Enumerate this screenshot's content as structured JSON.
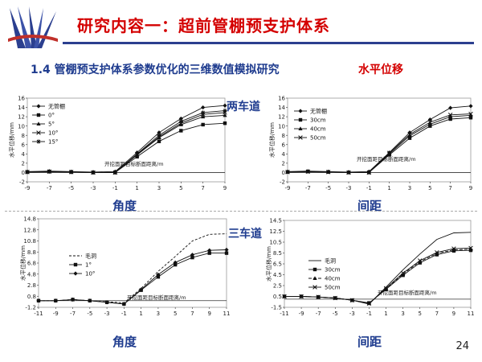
{
  "header": {
    "title": "研究内容一：超前管棚预支护体系"
  },
  "subtitle": "1.4 管棚预支护体系参数优化的三维数值模拟研究",
  "subtitle_tag": "水平位移",
  "lane_labels": {
    "two_lane": "两车道",
    "three_lane": "三车道"
  },
  "row_labels": {
    "tl": "角度",
    "tr": "间距",
    "bl": "角度",
    "br": "间距"
  },
  "page_number": "24",
  "colors": {
    "title_red": "#d40000",
    "label_blue": "#1f3c8f",
    "rule_blue": "#2b3f8f"
  },
  "chart_data": [
    {
      "type": "line",
      "title": "",
      "ylabel": "水平位移/mm",
      "xlabel": "开挖面距目标断面距离/m",
      "xlim": [
        -9,
        9
      ],
      "ylim": [
        -2,
        16
      ],
      "xticks": [
        -9,
        -7,
        -5,
        -3,
        -1,
        1,
        3,
        5,
        7,
        9
      ],
      "yticks": [
        -2,
        0,
        2,
        4,
        6,
        8,
        10,
        12,
        14,
        16
      ],
      "xtick_labels": [
        "-9",
        "-7",
        "-5",
        "-3",
        "-1",
        "1",
        "3",
        "5",
        "7",
        "9"
      ],
      "ytick_labels": [
        "-2",
        "0",
        "2",
        "4",
        "6",
        "8",
        "10",
        "12",
        "14",
        "16"
      ],
      "legend": "top-left",
      "x": [
        -9,
        -7,
        -5,
        -3,
        -1,
        1,
        3,
        5,
        7,
        9
      ],
      "series": [
        {
          "name": "无管棚",
          "marker": "diamond",
          "dash": "",
          "values": [
            0.2,
            0.3,
            0.2,
            0.1,
            0.2,
            4.3,
            8.6,
            11.6,
            14.0,
            14.4
          ]
        },
        {
          "name": "0°",
          "marker": "square",
          "dash": "",
          "values": [
            0.1,
            0.2,
            0.1,
            0.0,
            0.0,
            3.4,
            6.7,
            9.0,
            10.3,
            10.6
          ]
        },
        {
          "name": "5°",
          "marker": "triangle",
          "dash": "",
          "values": [
            0.1,
            0.2,
            0.1,
            0.0,
            0.0,
            3.8,
            7.5,
            10.3,
            12.0,
            12.3
          ]
        },
        {
          "name": "10°",
          "marker": "x",
          "dash": "",
          "values": [
            0.1,
            0.2,
            0.1,
            0.0,
            0.0,
            3.9,
            7.7,
            10.6,
            12.5,
            12.9
          ]
        },
        {
          "name": "15°",
          "marker": "star",
          "dash": "",
          "values": [
            0.1,
            0.2,
            0.1,
            0.0,
            0.0,
            4.0,
            8.0,
            11.0,
            12.9,
            13.3
          ]
        }
      ]
    },
    {
      "type": "line",
      "title": "",
      "ylabel": "水平位移/mm",
      "xlabel": "开挖面距目标断面距离/m",
      "xlim": [
        -9,
        9
      ],
      "ylim": [
        -2,
        16
      ],
      "xticks": [
        -9,
        -7,
        -5,
        -3,
        -1,
        1,
        3,
        5,
        7,
        9
      ],
      "yticks": [
        -2,
        0,
        2,
        4,
        6,
        8,
        10,
        12,
        14,
        16
      ],
      "xtick_labels": [
        "-9",
        "-7",
        "-5",
        "-3",
        "-1",
        "1",
        "3",
        "5",
        "7",
        "9"
      ],
      "ytick_labels": [
        "-2",
        "0",
        "2",
        "4",
        "6",
        "8",
        "10",
        "12",
        "14",
        "16"
      ],
      "legend": "top-left",
      "x": [
        -9,
        -7,
        -5,
        -3,
        -1,
        1,
        3,
        5,
        7,
        9
      ],
      "series": [
        {
          "name": "无管棚",
          "marker": "diamond",
          "dash": "",
          "values": [
            0.2,
            0.3,
            0.2,
            0.1,
            0.2,
            4.3,
            8.6,
            11.4,
            13.9,
            14.3
          ]
        },
        {
          "name": "30cm",
          "marker": "square",
          "dash": "",
          "values": [
            0.1,
            0.2,
            0.1,
            0.0,
            0.0,
            3.8,
            7.4,
            10.0,
            11.5,
            11.8
          ]
        },
        {
          "name": "40cm",
          "marker": "triangle",
          "dash": "",
          "values": [
            0.1,
            0.2,
            0.1,
            0.0,
            0.0,
            4.0,
            7.9,
            10.4,
            12.0,
            12.3
          ]
        },
        {
          "name": "50cm",
          "marker": "x",
          "dash": "",
          "values": [
            0.1,
            0.2,
            0.1,
            0.0,
            0.0,
            4.2,
            8.2,
            10.8,
            12.4,
            12.6
          ]
        }
      ]
    },
    {
      "type": "line",
      "title": "",
      "ylabel": "水平位移/mm",
      "xlabel": "开挖面距目标断面距离/m",
      "xlim": [
        -11,
        11
      ],
      "ylim": [
        -1.2,
        14.8
      ],
      "xticks": [
        -11,
        -9,
        -7,
        -5,
        -3,
        -1,
        1,
        3,
        5,
        7,
        9,
        11
      ],
      "yticks": [
        -1.2,
        0.8,
        2.8,
        4.8,
        6.8,
        8.8,
        10.8,
        12.8,
        14.8
      ],
      "xtick_labels": [
        "-11",
        "-9",
        "-7",
        "-5",
        "-3",
        "-1",
        "1",
        "3",
        "5",
        "7",
        "9",
        "11"
      ],
      "ytick_labels": [
        "-1.2",
        "0.8",
        "2.8",
        "4.8",
        "6.8",
        "8.8",
        "10.8",
        "12.8",
        "14.8"
      ],
      "legend": "left",
      "x": [
        -11,
        -9,
        -7,
        -5,
        -3,
        -1,
        1,
        3,
        5,
        7,
        9,
        11
      ],
      "series": [
        {
          "name": "毛洞",
          "marker": "none",
          "dash": "3,2",
          "values": [
            0.0,
            0.0,
            0.2,
            0.0,
            -0.2,
            -0.4,
            2.2,
            5.3,
            8.0,
            10.8,
            12.0,
            12.1
          ]
        },
        {
          "name": "1°",
          "marker": "square",
          "dash": "",
          "values": [
            0.0,
            0.0,
            0.2,
            0.0,
            -0.3,
            -0.6,
            1.9,
            4.3,
            6.5,
            7.8,
            8.6,
            8.6
          ]
        },
        {
          "name": "10°",
          "marker": "diamond",
          "dash": "",
          "values": [
            0.0,
            0.0,
            0.2,
            0.0,
            -0.3,
            -0.6,
            2.0,
            4.7,
            6.9,
            8.3,
            9.1,
            9.2
          ]
        }
      ]
    },
    {
      "type": "line",
      "title": "",
      "ylabel": "水平位移/mm",
      "xlabel": "开挖面距目标断面距离/m",
      "xlim": [
        -11,
        11
      ],
      "ylim": [
        -1.5,
        14.5
      ],
      "xticks": [
        -11,
        -9,
        -7,
        -5,
        -3,
        -1,
        1,
        3,
        5,
        7,
        9,
        11
      ],
      "yticks": [
        -1.5,
        0.5,
        2.5,
        4.5,
        6.5,
        8.5,
        10.5,
        12.5,
        14.5
      ],
      "xtick_labels": [
        "-11",
        "-9",
        "-7",
        "-5",
        "-3",
        "-1",
        "1",
        "3",
        "5",
        "7",
        "9",
        "11"
      ],
      "ytick_labels": [
        "-1.5",
        "0.5",
        "2.5",
        "4.5",
        "6.5",
        "8.5",
        "10.5",
        "12.5",
        "14.5"
      ],
      "legend": "left",
      "x": [
        -11,
        -9,
        -7,
        -5,
        -3,
        -1,
        1,
        3,
        5,
        7,
        9,
        11
      ],
      "series": [
        {
          "name": "毛洞",
          "marker": "none",
          "dash": "",
          "values": [
            0.5,
            0.5,
            0.4,
            0.2,
            -0.2,
            -0.9,
            2.2,
            5.4,
            8.3,
            11.0,
            12.2,
            12.3
          ]
        },
        {
          "name": "30cm",
          "marker": "square",
          "dash": "",
          "values": [
            0.5,
            0.5,
            0.4,
            0.2,
            -0.2,
            -0.7,
            1.8,
            4.4,
            6.7,
            8.2,
            8.9,
            9.0
          ]
        },
        {
          "name": "40cm",
          "marker": "triangle",
          "dash": "4,2",
          "values": [
            0.5,
            0.5,
            0.4,
            0.2,
            -0.2,
            -0.8,
            1.9,
            4.6,
            6.9,
            8.4,
            9.1,
            9.2
          ]
        },
        {
          "name": "50cm",
          "marker": "x",
          "dash": "",
          "values": [
            0.5,
            0.5,
            0.4,
            0.2,
            -0.2,
            -0.8,
            2.0,
            4.8,
            7.1,
            8.6,
            9.3,
            9.4
          ]
        }
      ]
    }
  ]
}
